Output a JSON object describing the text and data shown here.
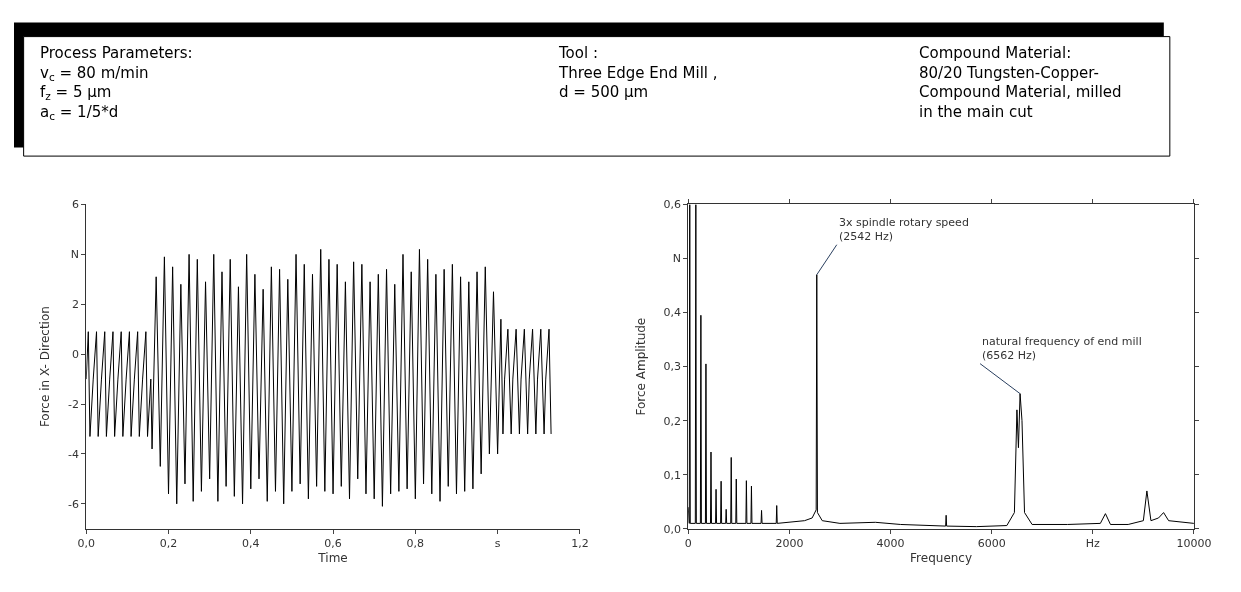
{
  "chart_data": [
    {
      "type": "other",
      "annotations": [
        "Process Parameters:\nv$_{c}$ = 80 m/min\nf$_{z}$ = 5 µm\na$_{c}$ = 1/5*d",
        "Tool :\nThree Edge End Mill ,\nd = 500 µm",
        "Compound Material:\n80/20 Tungsten-Copper-\nCompound Material, milled\nin the main cut"
      ]
    },
    {
      "type": "line",
      "xlabel": "Time",
      "ylabel": "Force in X- Direction",
      "xlim": [
        0,
        1.2
      ],
      "ylim": [
        -7,
        6
      ],
      "xticks": [
        {
          "value": 0,
          "label": "0,0"
        },
        {
          "value": 0.2,
          "label": "0,2"
        },
        {
          "value": 0.4,
          "label": "0,4"
        },
        {
          "value": 0.6,
          "label": "0,6"
        },
        {
          "value": 0.8,
          "label": "0,8"
        },
        {
          "value": 1.0,
          "label": "s"
        },
        {
          "value": 1.2,
          "label": "1,2"
        }
      ],
      "yticks": [
        -6,
        -4,
        -2,
        0,
        2,
        {
          "value": 4,
          "label": "N"
        },
        6
      ],
      "x": [
        0.0,
        0.005,
        0.009,
        0.017,
        0.025,
        0.029,
        0.037,
        0.045,
        0.049,
        0.057,
        0.065,
        0.069,
        0.077,
        0.085,
        0.089,
        0.097,
        0.105,
        0.109,
        0.117,
        0.125,
        0.129,
        0.137,
        0.145,
        0.149,
        0.157,
        0.16,
        0.17,
        0.18,
        0.19,
        0.2,
        0.21,
        0.22,
        0.23,
        0.24,
        0.25,
        0.26,
        0.27,
        0.28,
        0.29,
        0.3,
        0.31,
        0.32,
        0.33,
        0.34,
        0.35,
        0.36,
        0.37,
        0.38,
        0.39,
        0.4,
        0.41,
        0.42,
        0.43,
        0.44,
        0.45,
        0.46,
        0.47,
        0.48,
        0.49,
        0.5,
        0.51,
        0.52,
        0.53,
        0.54,
        0.55,
        0.56,
        0.57,
        0.58,
        0.59,
        0.6,
        0.61,
        0.62,
        0.63,
        0.64,
        0.65,
        0.66,
        0.67,
        0.68,
        0.69,
        0.7,
        0.71,
        0.72,
        0.73,
        0.74,
        0.75,
        0.76,
        0.77,
        0.78,
        0.79,
        0.8,
        0.81,
        0.82,
        0.83,
        0.84,
        0.85,
        0.86,
        0.87,
        0.88,
        0.89,
        0.9,
        0.91,
        0.92,
        0.93,
        0.94,
        0.95,
        0.96,
        0.97,
        0.98,
        0.99,
        1.0,
        1.008,
        1.013,
        1.017,
        1.025,
        1.033,
        1.037,
        1.045,
        1.053,
        1.057,
        1.065,
        1.073,
        1.077,
        1.085,
        1.093,
        1.097,
        1.105,
        1.113,
        1.117,
        1.125,
        1.13
      ],
      "series": [
        {
          "color": "#000000",
          "values": [
            -1.0,
            0.9,
            -3.3,
            -1.0,
            0.9,
            -3.3,
            -1.0,
            0.9,
            -3.3,
            -1.0,
            0.9,
            -3.3,
            -1.0,
            0.9,
            -3.3,
            -1.0,
            0.9,
            -3.3,
            -1.0,
            0.9,
            -3.3,
            -1.0,
            0.9,
            -3.3,
            -1.0,
            -3.8,
            3.1,
            -4.5,
            3.9,
            -5.6,
            3.5,
            -6.0,
            2.8,
            -5.2,
            4.0,
            -5.9,
            3.8,
            -5.5,
            2.9,
            -5.0,
            4.0,
            -5.9,
            3.3,
            -5.3,
            3.8,
            -5.7,
            2.7,
            -6.0,
            4.0,
            -5.4,
            3.2,
            -5.0,
            2.6,
            -5.9,
            3.5,
            -5.5,
            3.4,
            -6.0,
            3.0,
            -5.5,
            4.0,
            -5.2,
            3.6,
            -5.8,
            3.2,
            -5.3,
            4.2,
            -5.5,
            3.8,
            -5.6,
            3.6,
            -5.3,
            2.9,
            -5.8,
            3.7,
            -5.0,
            3.6,
            -5.6,
            2.9,
            -5.8,
            3.2,
            -6.1,
            3.4,
            -5.6,
            2.8,
            -5.5,
            4.0,
            -5.4,
            3.3,
            -5.8,
            4.2,
            -5.2,
            3.8,
            -5.6,
            3.2,
            -5.9,
            3.4,
            -5.3,
            3.6,
            -5.6,
            3.1,
            -5.5,
            2.9,
            -5.4,
            3.3,
            -4.8,
            3.5,
            -4.0,
            2.5,
            -4.0,
            1.4,
            -3.2,
            -1.0,
            1.0,
            -3.2,
            -1.0,
            1.0,
            -3.2,
            -1.0,
            1.0,
            -3.2,
            -1.0,
            1.0,
            -3.2,
            -1.0,
            1.0,
            -3.2,
            -1.0,
            1.0,
            -3.2
          ]
        }
      ]
    },
    {
      "type": "line",
      "xlabel": "Frequency",
      "ylabel": "Force Amplitude",
      "xlim": [
        0,
        10000
      ],
      "ylim": [
        0,
        0.6
      ],
      "xticks": [
        0,
        2000,
        4000,
        6000,
        {
          "value": 8000,
          "label": "Hz"
        },
        10000
      ],
      "yticks": [
        {
          "value": 0,
          "label": "0,0"
        },
        {
          "value": 0.1,
          "label": "0,1"
        },
        {
          "value": 0.2,
          "label": "0,2"
        },
        {
          "value": 0.3,
          "label": "0,3"
        },
        {
          "value": 0.4,
          "label": "0,4"
        },
        {
          "value": 0.5,
          "label": "N"
        },
        {
          "value": 0.6,
          "label": "0,6"
        }
      ],
      "x": [
        0,
        20,
        30,
        40,
        140,
        150,
        160,
        240,
        250,
        260,
        340,
        350,
        360,
        440,
        450,
        460,
        540,
        550,
        560,
        640,
        650,
        660,
        740,
        750,
        760,
        840,
        850,
        860,
        940,
        950,
        960,
        1140,
        1150,
        1160,
        1240,
        1250,
        1260,
        1440,
        1450,
        1460,
        1740,
        1750,
        1760,
        2300,
        2450,
        2530,
        2542,
        2555,
        2650,
        3000,
        3700,
        4200,
        5090,
        5100,
        5110,
        5700,
        6300,
        6450,
        6500,
        6530,
        6562,
        6600,
        6650,
        6800,
        7500,
        8150,
        8250,
        8350,
        8700,
        9000,
        9070,
        9150,
        9300,
        9400,
        9500,
        10000
      ],
      "series": [
        {
          "color": "#000000",
          "values": [
            0.04,
            0.01,
            0.6,
            0.01,
            0.01,
            0.6,
            0.01,
            0.01,
            0.395,
            0.01,
            0.01,
            0.305,
            0.01,
            0.01,
            0.142,
            0.01,
            0.01,
            0.073,
            0.01,
            0.01,
            0.088,
            0.01,
            0.01,
            0.036,
            0.01,
            0.01,
            0.132,
            0.01,
            0.01,
            0.092,
            0.01,
            0.01,
            0.089,
            0.01,
            0.01,
            0.079,
            0.01,
            0.01,
            0.034,
            0.01,
            0.01,
            0.043,
            0.01,
            0.015,
            0.02,
            0.035,
            0.47,
            0.03,
            0.015,
            0.01,
            0.012,
            0.008,
            0.005,
            0.025,
            0.005,
            0.004,
            0.006,
            0.03,
            0.22,
            0.15,
            0.25,
            0.2,
            0.03,
            0.008,
            0.008,
            0.01,
            0.028,
            0.008,
            0.008,
            0.015,
            0.07,
            0.015,
            0.02,
            0.03,
            0.015,
            0.01
          ]
        }
      ],
      "annotations": [
        {
          "text": "3x spindle rotary speed\n(2542 Hz)",
          "x": 2542,
          "y": 0.47
        },
        {
          "text": "natural frequency of end mill\n(6562 Hz)",
          "x": 6562,
          "y": 0.25
        }
      ]
    }
  ]
}
